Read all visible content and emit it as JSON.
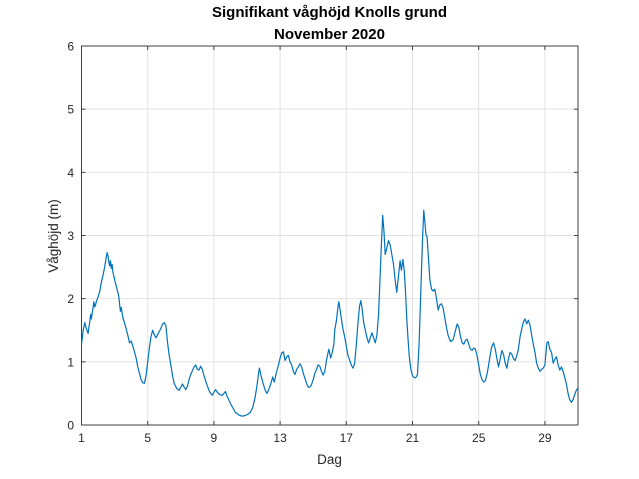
{
  "chart": {
    "title_line1": "Signifikant våghöjd Knolls grund",
    "title_line2": "November 2020",
    "xlabel": "Dag",
    "ylabel": "Våghöjd (m)"
  },
  "colors": {
    "line": "#0072BD",
    "axes": "#3f3f3f",
    "grid": "#e2e2e2",
    "tick_text": "#262626",
    "title_text": "#000000",
    "background": "#ffffff"
  },
  "chart_data": {
    "type": "line",
    "title": "Signifikant våghöjd Knolls grund",
    "subtitle": "November 2020",
    "xlabel": "Dag",
    "ylabel": "Våghöjd (m)",
    "xlim": [
      1,
      31
    ],
    "ylim": [
      0,
      6
    ],
    "xticks": [
      1,
      5,
      9,
      13,
      17,
      21,
      25,
      29
    ],
    "yticks": [
      0,
      1,
      2,
      3,
      4,
      5,
      6
    ],
    "grid": true,
    "legend": "none",
    "series": [
      {
        "name": "Signifikant våghöjd (m)",
        "points": [
          [
            1.0,
            1.28
          ],
          [
            1.05,
            1.38
          ],
          [
            1.1,
            1.5
          ],
          [
            1.15,
            1.56
          ],
          [
            1.2,
            1.62
          ],
          [
            1.25,
            1.57
          ],
          [
            1.3,
            1.52
          ],
          [
            1.35,
            1.48
          ],
          [
            1.4,
            1.45
          ],
          [
            1.45,
            1.55
          ],
          [
            1.5,
            1.63
          ],
          [
            1.55,
            1.75
          ],
          [
            1.6,
            1.68
          ],
          [
            1.65,
            1.78
          ],
          [
            1.7,
            1.86
          ],
          [
            1.75,
            1.95
          ],
          [
            1.8,
            1.87
          ],
          [
            1.85,
            1.9
          ],
          [
            1.9,
            1.96
          ],
          [
            1.95,
            1.99
          ],
          [
            2.0,
            2.03
          ],
          [
            2.1,
            2.11
          ],
          [
            2.2,
            2.26
          ],
          [
            2.3,
            2.37
          ],
          [
            2.4,
            2.5
          ],
          [
            2.45,
            2.58
          ],
          [
            2.5,
            2.66
          ],
          [
            2.55,
            2.73
          ],
          [
            2.6,
            2.68
          ],
          [
            2.65,
            2.58
          ],
          [
            2.7,
            2.52
          ],
          [
            2.75,
            2.6
          ],
          [
            2.8,
            2.48
          ],
          [
            2.85,
            2.54
          ],
          [
            2.9,
            2.42
          ],
          [
            2.95,
            2.36
          ],
          [
            3.05,
            2.25
          ],
          [
            3.15,
            2.15
          ],
          [
            3.25,
            2.04
          ],
          [
            3.3,
            1.92
          ],
          [
            3.35,
            1.8
          ],
          [
            3.4,
            1.86
          ],
          [
            3.5,
            1.7
          ],
          [
            3.6,
            1.62
          ],
          [
            3.7,
            1.52
          ],
          [
            3.8,
            1.42
          ],
          [
            3.9,
            1.3
          ],
          [
            4.0,
            1.33
          ],
          [
            4.1,
            1.25
          ],
          [
            4.2,
            1.16
          ],
          [
            4.3,
            1.06
          ],
          [
            4.4,
            0.92
          ],
          [
            4.5,
            0.82
          ],
          [
            4.6,
            0.72
          ],
          [
            4.7,
            0.67
          ],
          [
            4.8,
            0.66
          ],
          [
            4.9,
            0.78
          ],
          [
            5.0,
            1.0
          ],
          [
            5.1,
            1.22
          ],
          [
            5.2,
            1.4
          ],
          [
            5.3,
            1.5
          ],
          [
            5.4,
            1.43
          ],
          [
            5.5,
            1.38
          ],
          [
            5.6,
            1.43
          ],
          [
            5.7,
            1.48
          ],
          [
            5.8,
            1.53
          ],
          [
            5.9,
            1.6
          ],
          [
            6.0,
            1.62
          ],
          [
            6.1,
            1.57
          ],
          [
            6.2,
            1.3
          ],
          [
            6.3,
            1.1
          ],
          [
            6.4,
            0.95
          ],
          [
            6.5,
            0.78
          ],
          [
            6.6,
            0.66
          ],
          [
            6.75,
            0.58
          ],
          [
            6.9,
            0.55
          ],
          [
            7.0,
            0.6
          ],
          [
            7.1,
            0.65
          ],
          [
            7.2,
            0.6
          ],
          [
            7.3,
            0.56
          ],
          [
            7.4,
            0.61
          ],
          [
            7.5,
            0.72
          ],
          [
            7.6,
            0.8
          ],
          [
            7.7,
            0.86
          ],
          [
            7.8,
            0.92
          ],
          [
            7.9,
            0.95
          ],
          [
            8.0,
            0.88
          ],
          [
            8.1,
            0.87
          ],
          [
            8.2,
            0.93
          ],
          [
            8.3,
            0.88
          ],
          [
            8.4,
            0.78
          ],
          [
            8.5,
            0.7
          ],
          [
            8.6,
            0.62
          ],
          [
            8.75,
            0.52
          ],
          [
            8.9,
            0.47
          ],
          [
            9.0,
            0.52
          ],
          [
            9.1,
            0.56
          ],
          [
            9.2,
            0.52
          ],
          [
            9.35,
            0.48
          ],
          [
            9.5,
            0.47
          ],
          [
            9.6,
            0.5
          ],
          [
            9.7,
            0.53
          ],
          [
            9.8,
            0.45
          ],
          [
            9.9,
            0.4
          ],
          [
            10.0,
            0.34
          ],
          [
            10.15,
            0.27
          ],
          [
            10.3,
            0.2
          ],
          [
            10.5,
            0.16
          ],
          [
            10.7,
            0.14
          ],
          [
            10.9,
            0.15
          ],
          [
            11.05,
            0.17
          ],
          [
            11.2,
            0.2
          ],
          [
            11.35,
            0.28
          ],
          [
            11.5,
            0.45
          ],
          [
            11.6,
            0.62
          ],
          [
            11.7,
            0.82
          ],
          [
            11.75,
            0.9
          ],
          [
            11.85,
            0.78
          ],
          [
            11.95,
            0.68
          ],
          [
            12.1,
            0.55
          ],
          [
            12.2,
            0.5
          ],
          [
            12.3,
            0.55
          ],
          [
            12.4,
            0.62
          ],
          [
            12.5,
            0.71
          ],
          [
            12.55,
            0.76
          ],
          [
            12.65,
            0.68
          ],
          [
            12.75,
            0.8
          ],
          [
            12.9,
            0.95
          ],
          [
            13.0,
            1.06
          ],
          [
            13.1,
            1.14
          ],
          [
            13.2,
            1.16
          ],
          [
            13.3,
            1.02
          ],
          [
            13.4,
            1.08
          ],
          [
            13.5,
            1.1
          ],
          [
            13.6,
            1.0
          ],
          [
            13.7,
            0.95
          ],
          [
            13.8,
            0.85
          ],
          [
            13.9,
            0.8
          ],
          [
            14.0,
            0.88
          ],
          [
            14.1,
            0.92
          ],
          [
            14.2,
            0.97
          ],
          [
            14.3,
            0.92
          ],
          [
            14.4,
            0.82
          ],
          [
            14.5,
            0.74
          ],
          [
            14.6,
            0.66
          ],
          [
            14.7,
            0.6
          ],
          [
            14.8,
            0.6
          ],
          [
            14.9,
            0.64
          ],
          [
            15.0,
            0.72
          ],
          [
            15.1,
            0.82
          ],
          [
            15.2,
            0.88
          ],
          [
            15.3,
            0.95
          ],
          [
            15.4,
            0.93
          ],
          [
            15.5,
            0.85
          ],
          [
            15.6,
            0.79
          ],
          [
            15.7,
            0.85
          ],
          [
            15.8,
            1.02
          ],
          [
            15.9,
            1.15
          ],
          [
            15.95,
            1.2
          ],
          [
            16.05,
            1.06
          ],
          [
            16.15,
            1.15
          ],
          [
            16.25,
            1.28
          ],
          [
            16.3,
            1.5
          ],
          [
            16.4,
            1.65
          ],
          [
            16.5,
            1.88
          ],
          [
            16.55,
            1.95
          ],
          [
            16.65,
            1.78
          ],
          [
            16.72,
            1.65
          ],
          [
            16.8,
            1.52
          ],
          [
            16.9,
            1.4
          ],
          [
            17.0,
            1.25
          ],
          [
            17.1,
            1.1
          ],
          [
            17.2,
            1.03
          ],
          [
            17.3,
            0.95
          ],
          [
            17.4,
            0.9
          ],
          [
            17.5,
            0.97
          ],
          [
            17.6,
            1.25
          ],
          [
            17.7,
            1.6
          ],
          [
            17.8,
            1.88
          ],
          [
            17.88,
            1.97
          ],
          [
            17.95,
            1.85
          ],
          [
            18.05,
            1.62
          ],
          [
            18.15,
            1.5
          ],
          [
            18.25,
            1.38
          ],
          [
            18.35,
            1.3
          ],
          [
            18.45,
            1.38
          ],
          [
            18.55,
            1.46
          ],
          [
            18.65,
            1.38
          ],
          [
            18.75,
            1.3
          ],
          [
            18.85,
            1.42
          ],
          [
            18.95,
            1.75
          ],
          [
            19.05,
            2.4
          ],
          [
            19.12,
            2.85
          ],
          [
            19.2,
            3.32
          ],
          [
            19.28,
            3.05
          ],
          [
            19.35,
            2.7
          ],
          [
            19.45,
            2.8
          ],
          [
            19.55,
            2.92
          ],
          [
            19.65,
            2.85
          ],
          [
            19.75,
            2.7
          ],
          [
            19.85,
            2.55
          ],
          [
            19.95,
            2.3
          ],
          [
            20.05,
            2.1
          ],
          [
            20.15,
            2.35
          ],
          [
            20.25,
            2.6
          ],
          [
            20.33,
            2.45
          ],
          [
            20.42,
            2.62
          ],
          [
            20.5,
            2.45
          ],
          [
            20.58,
            2.1
          ],
          [
            20.65,
            1.7
          ],
          [
            20.72,
            1.4
          ],
          [
            20.8,
            1.1
          ],
          [
            20.9,
            0.88
          ],
          [
            21.0,
            0.78
          ],
          [
            21.1,
            0.75
          ],
          [
            21.2,
            0.75
          ],
          [
            21.3,
            0.8
          ],
          [
            21.4,
            1.3
          ],
          [
            21.5,
            2.1
          ],
          [
            21.6,
            2.9
          ],
          [
            21.68,
            3.4
          ],
          [
            21.75,
            3.2
          ],
          [
            21.82,
            3.0
          ],
          [
            21.88,
            2.98
          ],
          [
            21.95,
            2.7
          ],
          [
            22.05,
            2.3
          ],
          [
            22.15,
            2.15
          ],
          [
            22.25,
            2.12
          ],
          [
            22.35,
            2.15
          ],
          [
            22.45,
            2.0
          ],
          [
            22.55,
            1.82
          ],
          [
            22.65,
            1.9
          ],
          [
            22.75,
            1.92
          ],
          [
            22.85,
            1.85
          ],
          [
            22.95,
            1.7
          ],
          [
            23.05,
            1.55
          ],
          [
            23.15,
            1.42
          ],
          [
            23.3,
            1.32
          ],
          [
            23.45,
            1.35
          ],
          [
            23.6,
            1.5
          ],
          [
            23.7,
            1.6
          ],
          [
            23.8,
            1.55
          ],
          [
            23.9,
            1.4
          ],
          [
            24.0,
            1.3
          ],
          [
            24.1,
            1.28
          ],
          [
            24.2,
            1.34
          ],
          [
            24.3,
            1.36
          ],
          [
            24.4,
            1.28
          ],
          [
            24.5,
            1.2
          ],
          [
            24.6,
            1.18
          ],
          [
            24.7,
            1.22
          ],
          [
            24.8,
            1.2
          ],
          [
            24.9,
            1.1
          ],
          [
            25.0,
            0.95
          ],
          [
            25.1,
            0.8
          ],
          [
            25.2,
            0.72
          ],
          [
            25.3,
            0.68
          ],
          [
            25.4,
            0.7
          ],
          [
            25.5,
            0.8
          ],
          [
            25.6,
            0.95
          ],
          [
            25.7,
            1.12
          ],
          [
            25.8,
            1.25
          ],
          [
            25.9,
            1.3
          ],
          [
            26.0,
            1.2
          ],
          [
            26.1,
            1.05
          ],
          [
            26.2,
            0.92
          ],
          [
            26.3,
            1.05
          ],
          [
            26.4,
            1.18
          ],
          [
            26.5,
            1.12
          ],
          [
            26.6,
            0.98
          ],
          [
            26.7,
            0.9
          ],
          [
            26.8,
            1.05
          ],
          [
            26.9,
            1.15
          ],
          [
            27.0,
            1.12
          ],
          [
            27.1,
            1.05
          ],
          [
            27.2,
            1.02
          ],
          [
            27.3,
            1.1
          ],
          [
            27.4,
            1.2
          ],
          [
            27.5,
            1.4
          ],
          [
            27.6,
            1.52
          ],
          [
            27.7,
            1.63
          ],
          [
            27.8,
            1.68
          ],
          [
            27.9,
            1.6
          ],
          [
            28.0,
            1.66
          ],
          [
            28.1,
            1.58
          ],
          [
            28.2,
            1.42
          ],
          [
            28.3,
            1.28
          ],
          [
            28.4,
            1.15
          ],
          [
            28.5,
            0.98
          ],
          [
            28.6,
            0.9
          ],
          [
            28.7,
            0.85
          ],
          [
            28.8,
            0.88
          ],
          [
            28.9,
            0.9
          ],
          [
            29.0,
            0.95
          ],
          [
            29.05,
            1.1
          ],
          [
            29.12,
            1.3
          ],
          [
            29.2,
            1.32
          ],
          [
            29.3,
            1.2
          ],
          [
            29.4,
            1.15
          ],
          [
            29.5,
            0.98
          ],
          [
            29.6,
            1.04
          ],
          [
            29.7,
            1.08
          ],
          [
            29.8,
            0.95
          ],
          [
            29.9,
            0.87
          ],
          [
            30.0,
            0.92
          ],
          [
            30.1,
            0.85
          ],
          [
            30.2,
            0.75
          ],
          [
            30.3,
            0.65
          ],
          [
            30.4,
            0.5
          ],
          [
            30.5,
            0.4
          ],
          [
            30.6,
            0.36
          ],
          [
            30.7,
            0.4
          ],
          [
            30.8,
            0.48
          ],
          [
            30.9,
            0.55
          ],
          [
            30.98,
            0.58
          ]
        ]
      }
    ]
  }
}
